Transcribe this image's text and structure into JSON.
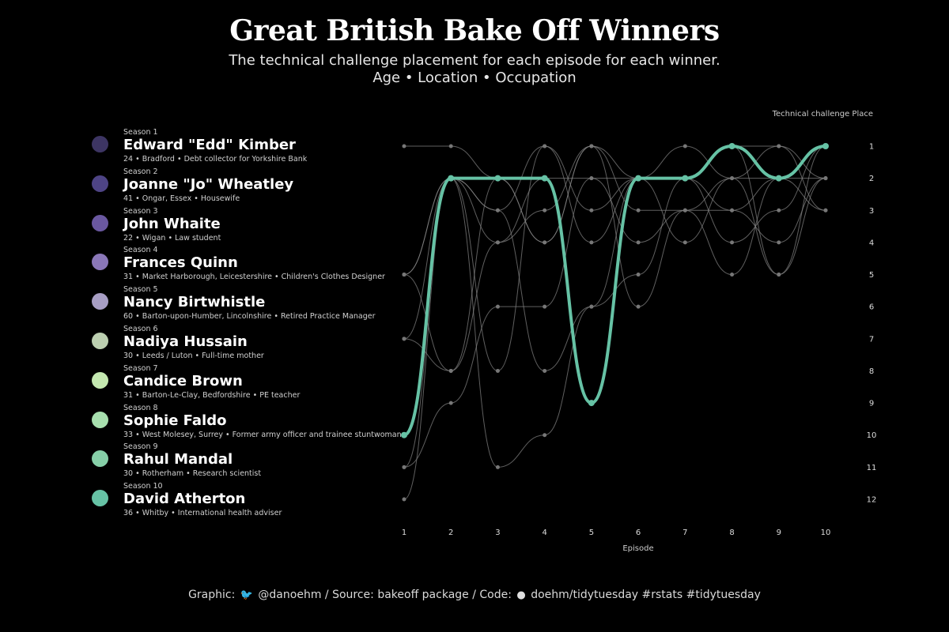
{
  "title": "Great British Bake Off Winners",
  "subtitle_line1": "The technical challenge placement for each episode for each winner.",
  "subtitle_line2": "Age • Location • Occupation",
  "footer": {
    "graphic_label": "Graphic:",
    "twitter_icon": "twitter-icon",
    "handle": "@danoehm",
    "source": "/ Source: bakeoff package / Code:",
    "github_icon": "github-icon",
    "code": "doehm/tidytuesday #rstats #tidytuesday"
  },
  "winners": [
    {
      "season": "Season 1",
      "name": "Edward \"Edd\" Kimber",
      "details": "24 • Bradford • Debt collector for Yorkshire Bank",
      "color": "#3d3563"
    },
    {
      "season": "Season 2",
      "name": "Joanne \"Jo\" Wheatley",
      "details": "41 • Ongar, Essex • Housewife",
      "color": "#4e4485"
    },
    {
      "season": "Season 3",
      "name": "John Whaite",
      "details": "22 • Wigan • Law student",
      "color": "#6a58a0"
    },
    {
      "season": "Season 4",
      "name": "Frances Quinn",
      "details": "31 • Market Harborough, Leicestershire • Children's Clothes Designer",
      "color": "#8a77b8"
    },
    {
      "season": "Season 5",
      "name": "Nancy Birtwhistle",
      "details": "60 • Barton-upon-Humber, Lincolnshire • Retired Practice Manager",
      "color": "#a79ec4"
    },
    {
      "season": "Season 6",
      "name": "Nadiya Hussain",
      "details": "30 • Leeds / Luton • Full-time mother",
      "color": "#bccfb0"
    },
    {
      "season": "Season 7",
      "name": "Candice Brown",
      "details": "31 • Barton-Le-Clay, Bedfordshire • PE teacher",
      "color": "#c4e8b0"
    },
    {
      "season": "Season 8",
      "name": "Sophie Faldo",
      "details": "33 • West Molesey, Surrey • Former army officer and trainee stuntwoman",
      "color": "#a7dfae"
    },
    {
      "season": "Season 9",
      "name": "Rahul Mandal",
      "details": "30 • Rotherham • Research scientist",
      "color": "#86cfa8"
    },
    {
      "season": "Season 10",
      "name": "David Atherton",
      "details": "36 • Whitby • International health adviser",
      "color": "#66c2a5"
    }
  ],
  "chart_data": {
    "type": "line",
    "xlabel": "Episode",
    "ylabel": "Technical challenge Place",
    "x": [
      1,
      2,
      3,
      4,
      5,
      6,
      7,
      8,
      9,
      10
    ],
    "xlim": [
      1,
      10
    ],
    "ylim": [
      1,
      12
    ],
    "y_reversed": true,
    "y_ticks": [
      1,
      2,
      3,
      4,
      5,
      6,
      7,
      8,
      9,
      10,
      11,
      12
    ],
    "grid": false,
    "highlight_color": "#66c2a5",
    "background_color": "#888888",
    "series": [
      {
        "values": [
          1,
          1,
          2,
          4,
          1,
          2,
          2,
          1,
          1,
          2
        ]
      },
      {
        "values": [
          5,
          2,
          3,
          1,
          4,
          2,
          2,
          4,
          3,
          1
        ]
      },
      {
        "values": [
          7,
          8,
          4,
          3,
          1,
          3,
          3,
          5,
          2,
          3
        ]
      },
      {
        "values": [
          11,
          9,
          6,
          6,
          2,
          4,
          3,
          3,
          4,
          2
        ]
      },
      {
        "values": [
          12,
          2,
          11,
          10,
          6,
          5,
          2,
          3,
          2,
          1
        ]
      },
      {
        "values": [
          5,
          2,
          8,
          1,
          3,
          2,
          4,
          2,
          5,
          1
        ]
      },
      {
        "values": [
          11,
          2,
          3,
          8,
          6,
          2,
          1,
          2,
          2,
          2
        ]
      },
      {
        "values": [
          5,
          8,
          2,
          4,
          1,
          6,
          3,
          2,
          1,
          3
        ]
      },
      {
        "values": [
          7,
          2,
          4,
          2,
          2,
          2,
          2,
          1,
          5,
          2
        ]
      },
      {
        "values": [
          10,
          2,
          2,
          2,
          9,
          2,
          2,
          1,
          2,
          1
        ]
      }
    ]
  }
}
